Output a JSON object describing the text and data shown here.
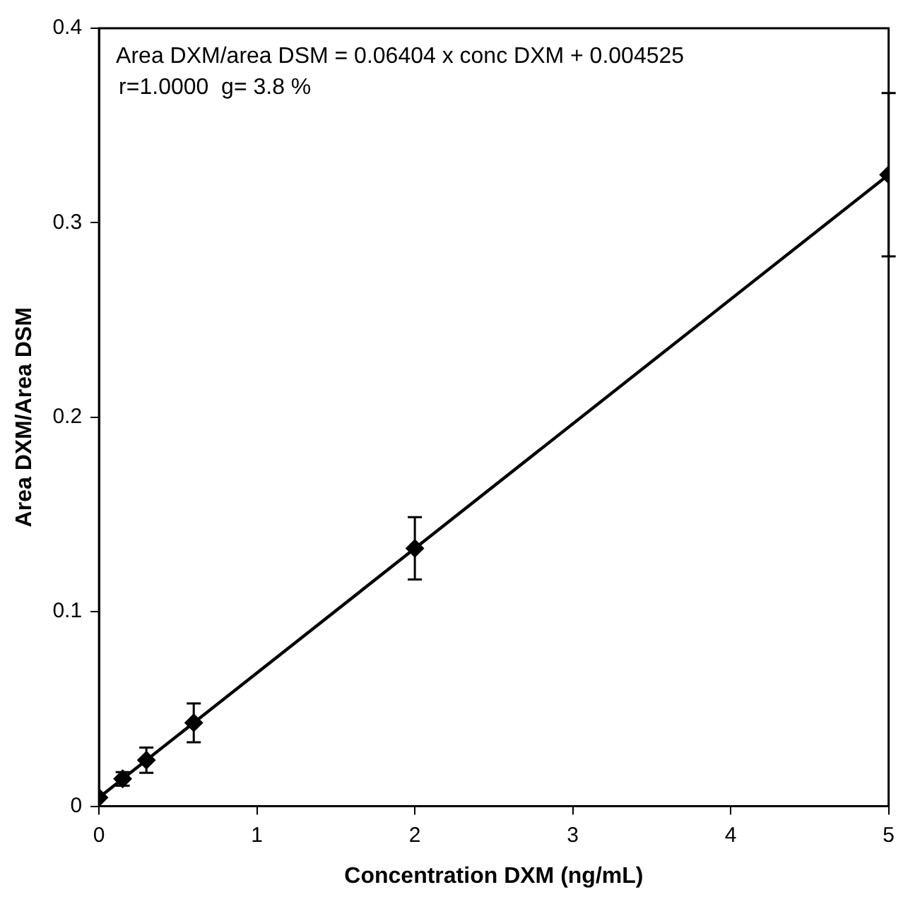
{
  "chart_data": {
    "type": "scatter",
    "xlabel": "Concentration DXM (ng/mL)",
    "ylabel": "Area DXM/Area DSM",
    "xlim": [
      0,
      5
    ],
    "xticks": [
      0,
      1,
      2,
      3,
      4,
      5
    ],
    "ylim": [
      0,
      0.4
    ],
    "yticks": [
      0,
      0.1,
      0.2,
      0.3,
      0.4
    ],
    "grid": false,
    "legend": false,
    "marker": "diamond",
    "annotations": [
      "Area DXM/area DSM = 0.06404 x conc DXM + 0.004525",
      "r=1.0000  g= 3.8 %"
    ],
    "series": [
      {
        "type": "scatter",
        "color": "#000000",
        "x": [
          0,
          0.15,
          0.3,
          0.6,
          2,
          5
        ],
        "values": [
          0.0045,
          0.0141,
          0.0237,
          0.0429,
          0.1326,
          0.3247
        ],
        "errors": [
          null,
          0.0035,
          0.0065,
          0.01,
          0.016,
          0.042
        ]
      },
      {
        "type": "line",
        "color": "#000000",
        "marker": "none",
        "line_style": "solid",
        "x": [
          0,
          5
        ],
        "values": [
          0.0045,
          0.3247
        ]
      }
    ]
  }
}
